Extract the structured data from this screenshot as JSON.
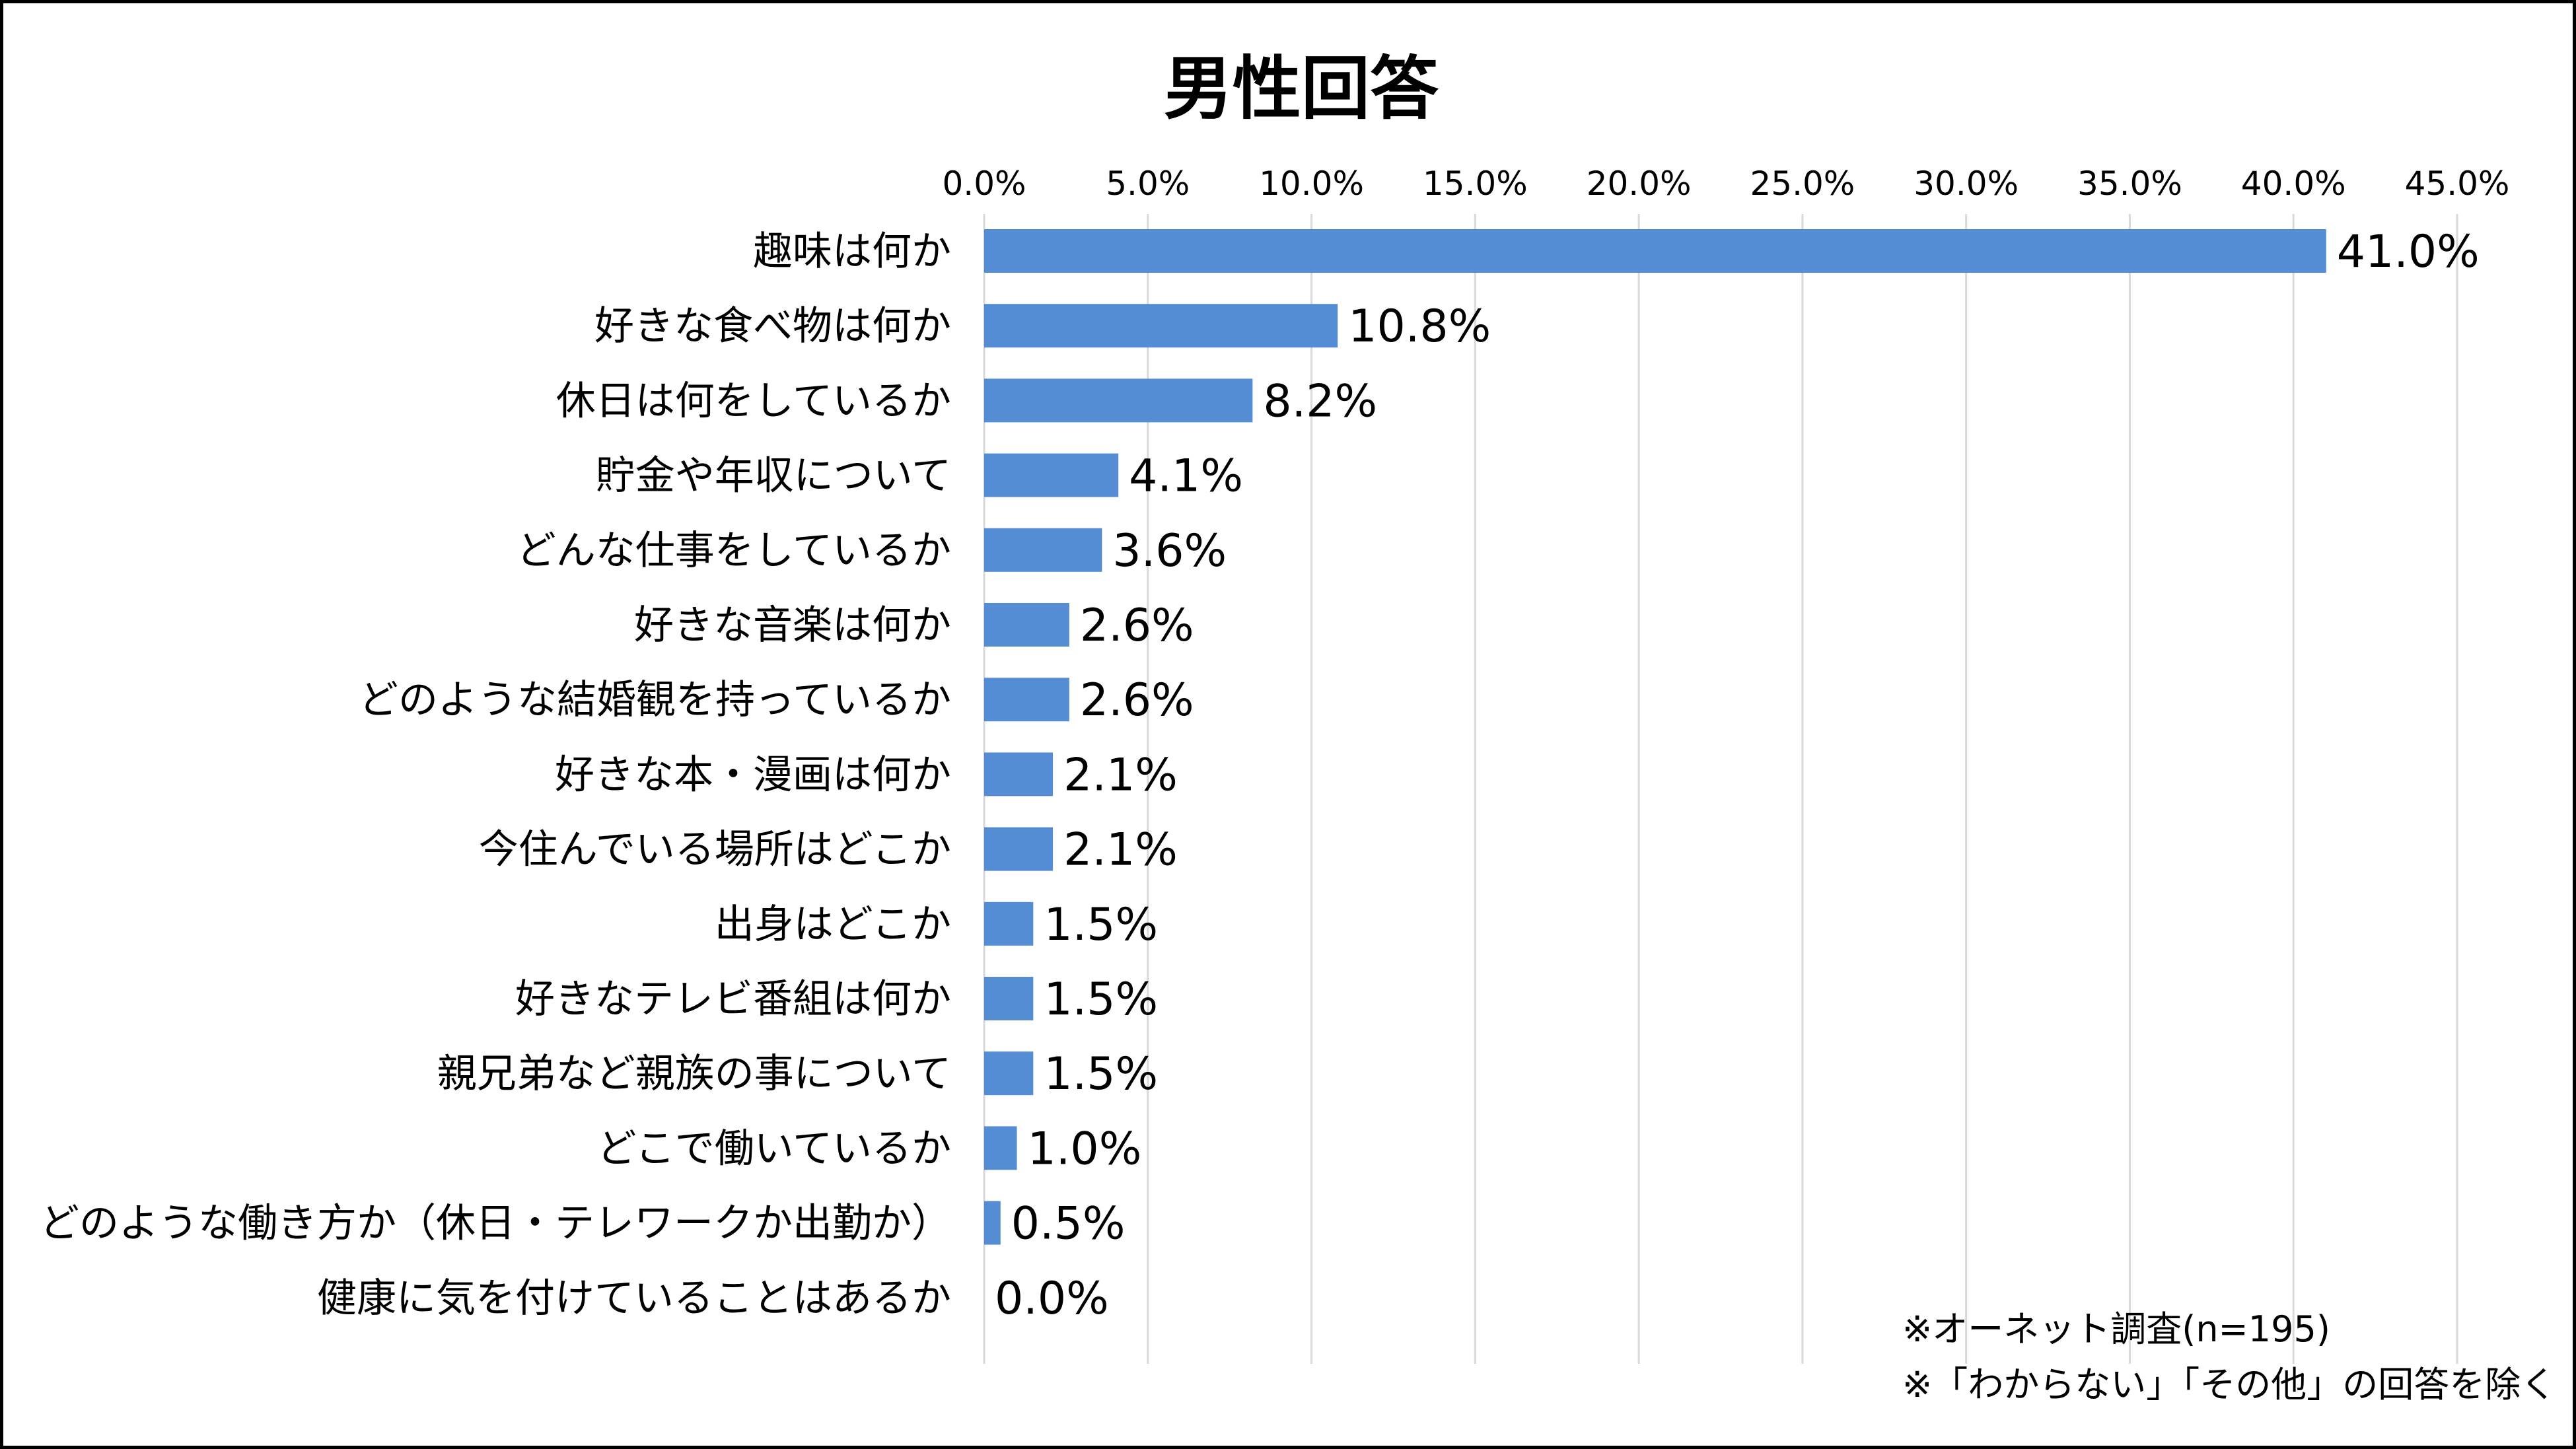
{
  "chart_data": {
    "type": "bar",
    "orientation": "horizontal",
    "title": "男性回答",
    "xlim": [
      0,
      45
    ],
    "xticks": [
      "0.0%",
      "5.0%",
      "10.0%",
      "15.0%",
      "20.0%",
      "25.0%",
      "30.0%",
      "35.0%",
      "40.0%",
      "45.0%"
    ],
    "xtick_values": [
      0,
      5,
      10,
      15,
      20,
      25,
      30,
      35,
      40,
      45
    ],
    "grid": true,
    "bar_color": "#548dd4",
    "categories": [
      "趣味は何か",
      "好きな食べ物は何か",
      "休日は何をしているか",
      "貯金や年収について",
      "どんな仕事をしているか",
      "好きな音楽は何か",
      "どのような結婚観を持っているか",
      "好きな本・漫画は何か",
      "今住んでいる場所はどこか",
      "出身はどこか",
      "好きなテレビ番組は何か",
      "親兄弟など親族の事について",
      "どこで働いているか",
      "どのような働き方か（休日・テレワークか出勤か）",
      "健康に気を付けていることはあるか"
    ],
    "values": [
      41.0,
      10.8,
      8.2,
      4.1,
      3.6,
      2.6,
      2.6,
      2.1,
      2.1,
      1.5,
      1.5,
      1.5,
      1.0,
      0.5,
      0.0
    ],
    "value_labels": [
      "41.0%",
      "10.8%",
      "8.2%",
      "4.1%",
      "3.6%",
      "2.6%",
      "2.6%",
      "2.1%",
      "2.1%",
      "1.5%",
      "1.5%",
      "1.5%",
      "1.0%",
      "0.5%",
      "0.0%"
    ]
  },
  "notes": {
    "line1": "※オーネット調査(n=195)",
    "line2": "※「わからない」「その他」の回答を除く"
  }
}
